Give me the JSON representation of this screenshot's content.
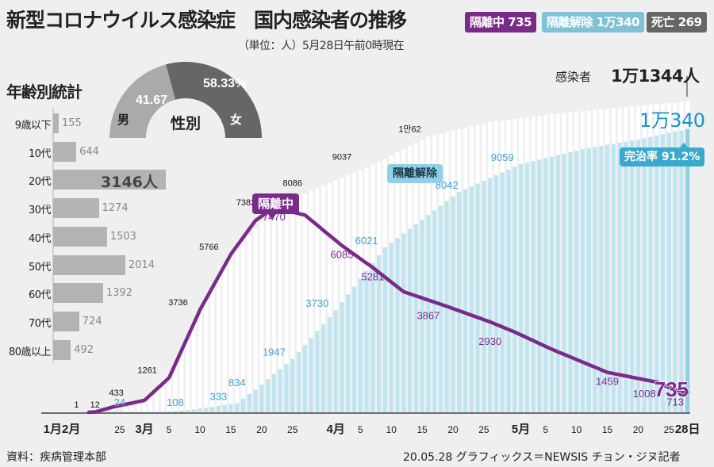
{
  "title": "新型コロナウイルス感染症　国内感染者の推移",
  "subtitle": "（単位：人）5月28日午前0時現在",
  "badges": [
    {
      "label": "隔離中 735",
      "color": "#7a2b8a"
    },
    {
      "label": "隔離解除 1万340",
      "color": "#7fc2d6"
    },
    {
      "label": "死亡 269",
      "color": "#666666"
    }
  ],
  "age_stats": {
    "title": "年齢別統計",
    "items": [
      {
        "label": "9歳以下",
        "value": 155,
        "text": "155"
      },
      {
        "label": "10代",
        "value": 644,
        "text": "644"
      },
      {
        "label": "20代",
        "value": 3146,
        "text": "3146人"
      },
      {
        "label": "30代",
        "value": 1274,
        "text": "1274"
      },
      {
        "label": "40代",
        "value": 1503,
        "text": "1503"
      },
      {
        "label": "50代",
        "value": 2014,
        "text": "2014"
      },
      {
        "label": "60代",
        "value": 1392,
        "text": "1392"
      },
      {
        "label": "70代",
        "value": 724,
        "text": "724"
      },
      {
        "label": "80歳以上",
        "value": 492,
        "text": "492"
      }
    ]
  },
  "gender": {
    "title": "性別",
    "male": {
      "label": "男",
      "value": 41.67,
      "text": "41.67",
      "color": "#aaaaaa"
    },
    "female": {
      "label": "女",
      "value": 58.33,
      "text": "58.33%",
      "color": "#666666"
    }
  },
  "summary": {
    "total_label": "感染者",
    "total_value": "1万1344人",
    "released_value": "1万340",
    "recovery_rate": "完治率 91.2%",
    "isolated_tag": "隔離中",
    "released_tag": "隔離解除",
    "last_isolated": "735"
  },
  "chart_data": {
    "type": "bar",
    "title": "新型コロナウイルス感染症　国内感染者の推移",
    "x_ticks": [
      {
        "day": -9,
        "label": "1月2月",
        "bold": true
      },
      {
        "day": 5,
        "label": "25"
      },
      {
        "day": 9,
        "label": "3月",
        "bold": true
      },
      {
        "day": 13,
        "label": "5"
      },
      {
        "day": 18,
        "label": "10"
      },
      {
        "day": 23,
        "label": "15"
      },
      {
        "day": 28,
        "label": "20"
      },
      {
        "day": 33,
        "label": "25"
      },
      {
        "day": 40,
        "label": "4月",
        "bold": true
      },
      {
        "day": 44,
        "label": "5"
      },
      {
        "day": 49,
        "label": "10"
      },
      {
        "day": 54,
        "label": "15"
      },
      {
        "day": 59,
        "label": "20"
      },
      {
        "day": 64,
        "label": "25"
      },
      {
        "day": 70,
        "label": "5月",
        "bold": true
      },
      {
        "day": 74,
        "label": "5"
      },
      {
        "day": 79,
        "label": "10"
      },
      {
        "day": 84,
        "label": "15"
      },
      {
        "day": 89,
        "label": "20"
      },
      {
        "day": 94,
        "label": "25"
      },
      {
        "day": 97,
        "label": "28日",
        "bold": true
      }
    ],
    "ylim": [
      0,
      11344
    ],
    "series": [
      {
        "name": "感染者 (累計)",
        "color": "#ffffff",
        "anchors": [
          [
            0,
            1
          ],
          [
            1,
            12
          ],
          [
            5,
            30
          ],
          [
            9,
            433
          ],
          [
            13,
            1261
          ],
          [
            18,
            3736
          ],
          [
            23,
            5766
          ],
          [
            30,
            7382
          ],
          [
            36,
            8086
          ],
          [
            46,
            9037
          ],
          [
            55,
            10062
          ],
          [
            65,
            10600
          ],
          [
            75,
            10874
          ],
          [
            85,
            11100
          ],
          [
            97,
            11344
          ]
        ]
      },
      {
        "name": "隔離解除",
        "color": "#bfe5f1",
        "anchors": [
          [
            0,
            0
          ],
          [
            5,
            24
          ],
          [
            10,
            24
          ],
          [
            13,
            30
          ],
          [
            17,
            108
          ],
          [
            20,
            200
          ],
          [
            24,
            333
          ],
          [
            27,
            834
          ],
          [
            33,
            1947
          ],
          [
            40,
            3730
          ],
          [
            48,
            6021
          ],
          [
            60,
            8042
          ],
          [
            70,
            9059
          ],
          [
            80,
            9600
          ],
          [
            90,
            10000
          ],
          [
            97,
            10340
          ]
        ]
      },
      {
        "name": "隔離中",
        "color": "#7a2b8a",
        "anchors": [
          [
            0,
            1
          ],
          [
            1,
            12
          ],
          [
            4,
            200
          ],
          [
            9,
            433
          ],
          [
            13,
            1261
          ],
          [
            18,
            3736
          ],
          [
            23,
            5766
          ],
          [
            27,
            7000
          ],
          [
            30,
            7470
          ],
          [
            35,
            7200
          ],
          [
            41,
            6085
          ],
          [
            46,
            5281
          ],
          [
            51,
            4400
          ],
          [
            58,
            3867
          ],
          [
            65,
            3300
          ],
          [
            69,
            2930
          ],
          [
            75,
            2300
          ],
          [
            84,
            1459
          ],
          [
            92,
            1100
          ],
          [
            93,
            1008
          ],
          [
            96,
            713
          ],
          [
            97,
            735
          ]
        ]
      }
    ],
    "labels": [
      {
        "day": -2,
        "value": 1,
        "text": "1",
        "series": "total"
      },
      {
        "day": 1,
        "value": 12,
        "text": "12",
        "series": "total"
      },
      {
        "day": 5,
        "value": 24,
        "text": "24",
        "series": "released"
      },
      {
        "day": 6,
        "value": 433,
        "text": "433",
        "series": "total"
      },
      {
        "day": 11,
        "value": 1261,
        "text": "1261",
        "series": "total"
      },
      {
        "day": 16,
        "value": 3736,
        "text": "3736",
        "series": "total"
      },
      {
        "day": 21,
        "value": 5766,
        "text": "5766",
        "series": "total"
      },
      {
        "day": 27,
        "value": 7382,
        "text": "7382",
        "series": "total"
      },
      {
        "day": 33,
        "value": 8086,
        "text": "8086",
        "series": "total"
      },
      {
        "day": 41,
        "value": 9037,
        "text": "9037",
        "series": "total"
      },
      {
        "day": 52,
        "value": 10062,
        "text": "1만62",
        "series": "total"
      },
      {
        "day": 14,
        "value": 108,
        "text": "108",
        "series": "released"
      },
      {
        "day": 21,
        "value": 333,
        "text": "333",
        "series": "released"
      },
      {
        "day": 24,
        "value": 834,
        "text": "834",
        "series": "released"
      },
      {
        "day": 30,
        "value": 1947,
        "text": "1947",
        "series": "released"
      },
      {
        "day": 37,
        "value": 3730,
        "text": "3730",
        "series": "released"
      },
      {
        "day": 45,
        "value": 6021,
        "text": "6021",
        "series": "released"
      },
      {
        "day": 58,
        "value": 8042,
        "text": "8042",
        "series": "released"
      },
      {
        "day": 67,
        "value": 9059,
        "text": "9059",
        "series": "released"
      },
      {
        "day": 30,
        "value": 7470,
        "text": "7470",
        "series": "isolated"
      },
      {
        "day": 41,
        "value": 6085,
        "text": "6085",
        "series": "isolated"
      },
      {
        "day": 46,
        "value": 5281,
        "text": "5281",
        "series": "isolated"
      },
      {
        "day": 55,
        "value": 3867,
        "text": "3867",
        "series": "isolated"
      },
      {
        "day": 65,
        "value": 2930,
        "text": "2930",
        "series": "isolated"
      },
      {
        "day": 84,
        "value": 1459,
        "text": "1459",
        "series": "isolated"
      },
      {
        "day": 90,
        "value": 1008,
        "text": "1008",
        "series": "isolated"
      },
      {
        "day": 95,
        "value": 713,
        "text": "713",
        "series": "isolated"
      }
    ]
  },
  "footer": {
    "source": "資料：疾病管理本部",
    "credit": "20.05.28 グラフィックス＝NEWSIS チョン・ジヌ記者"
  }
}
